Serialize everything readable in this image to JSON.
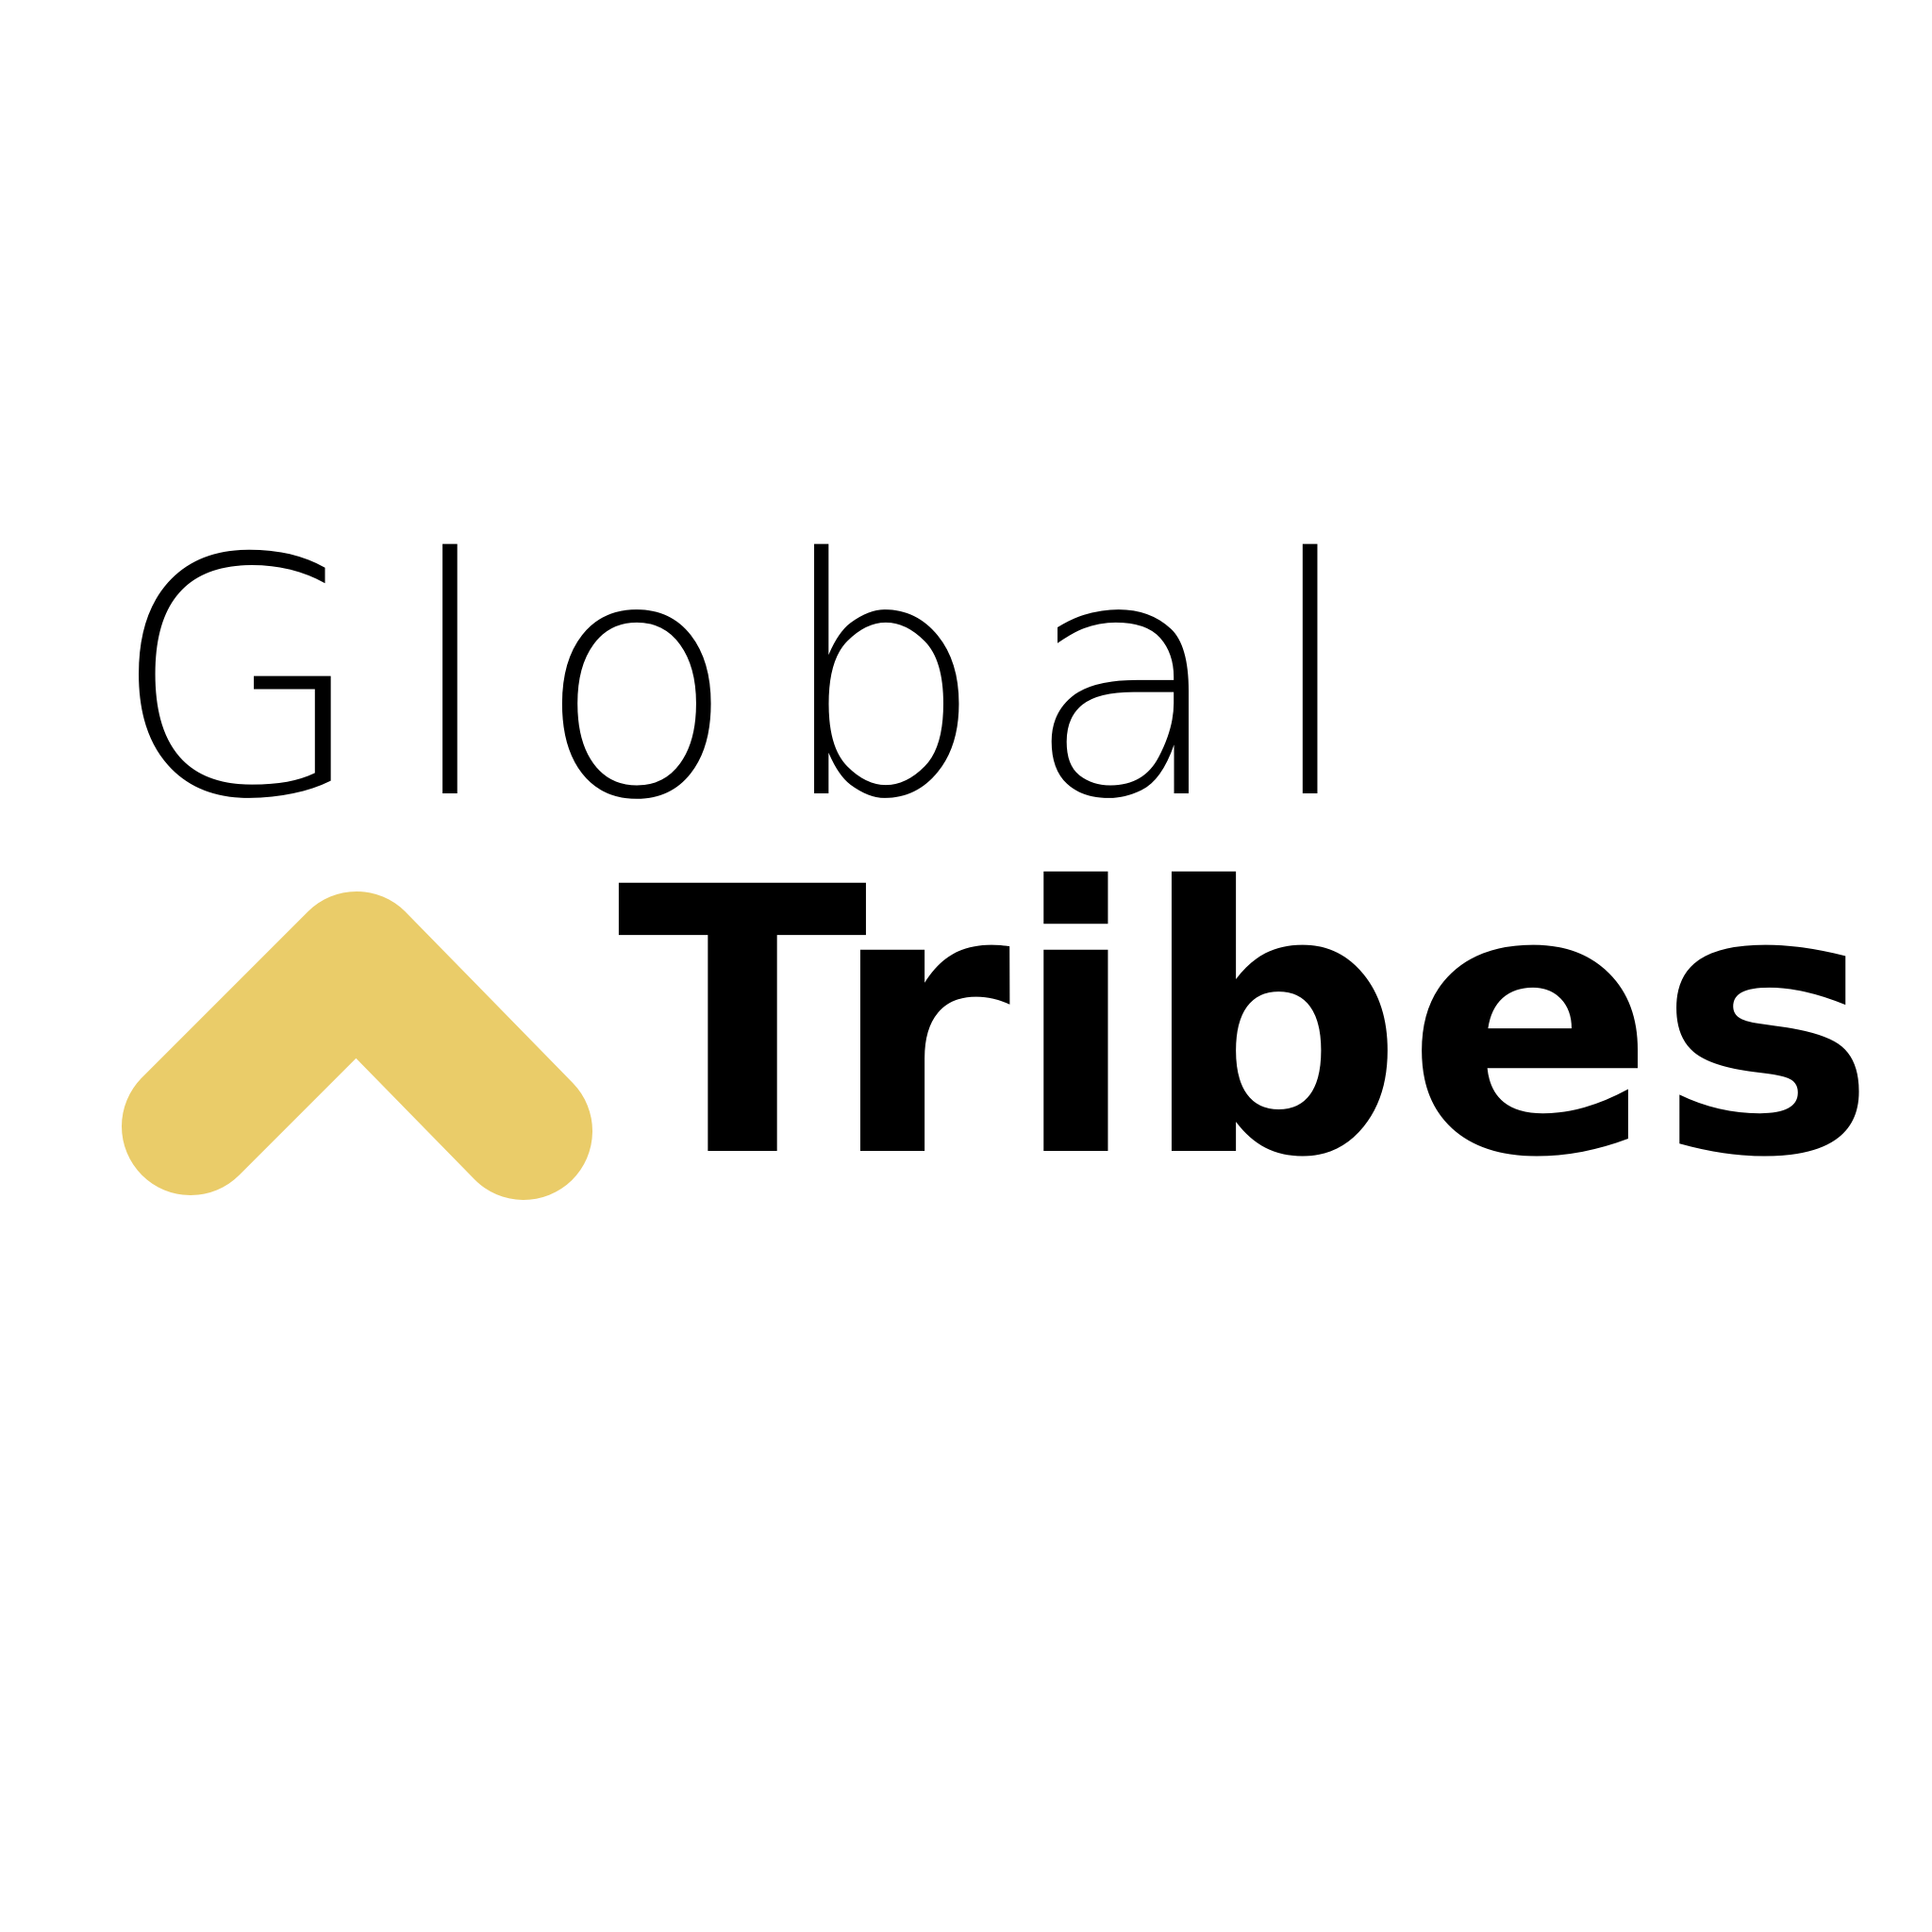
{
  "logo": {
    "word_top": "Global",
    "word_bottom": "Tribes",
    "text_color": "#000000",
    "accent_color": "#EACC69",
    "background_color": "#FFFFFF",
    "mark_icon": "chevron-up-icon"
  }
}
